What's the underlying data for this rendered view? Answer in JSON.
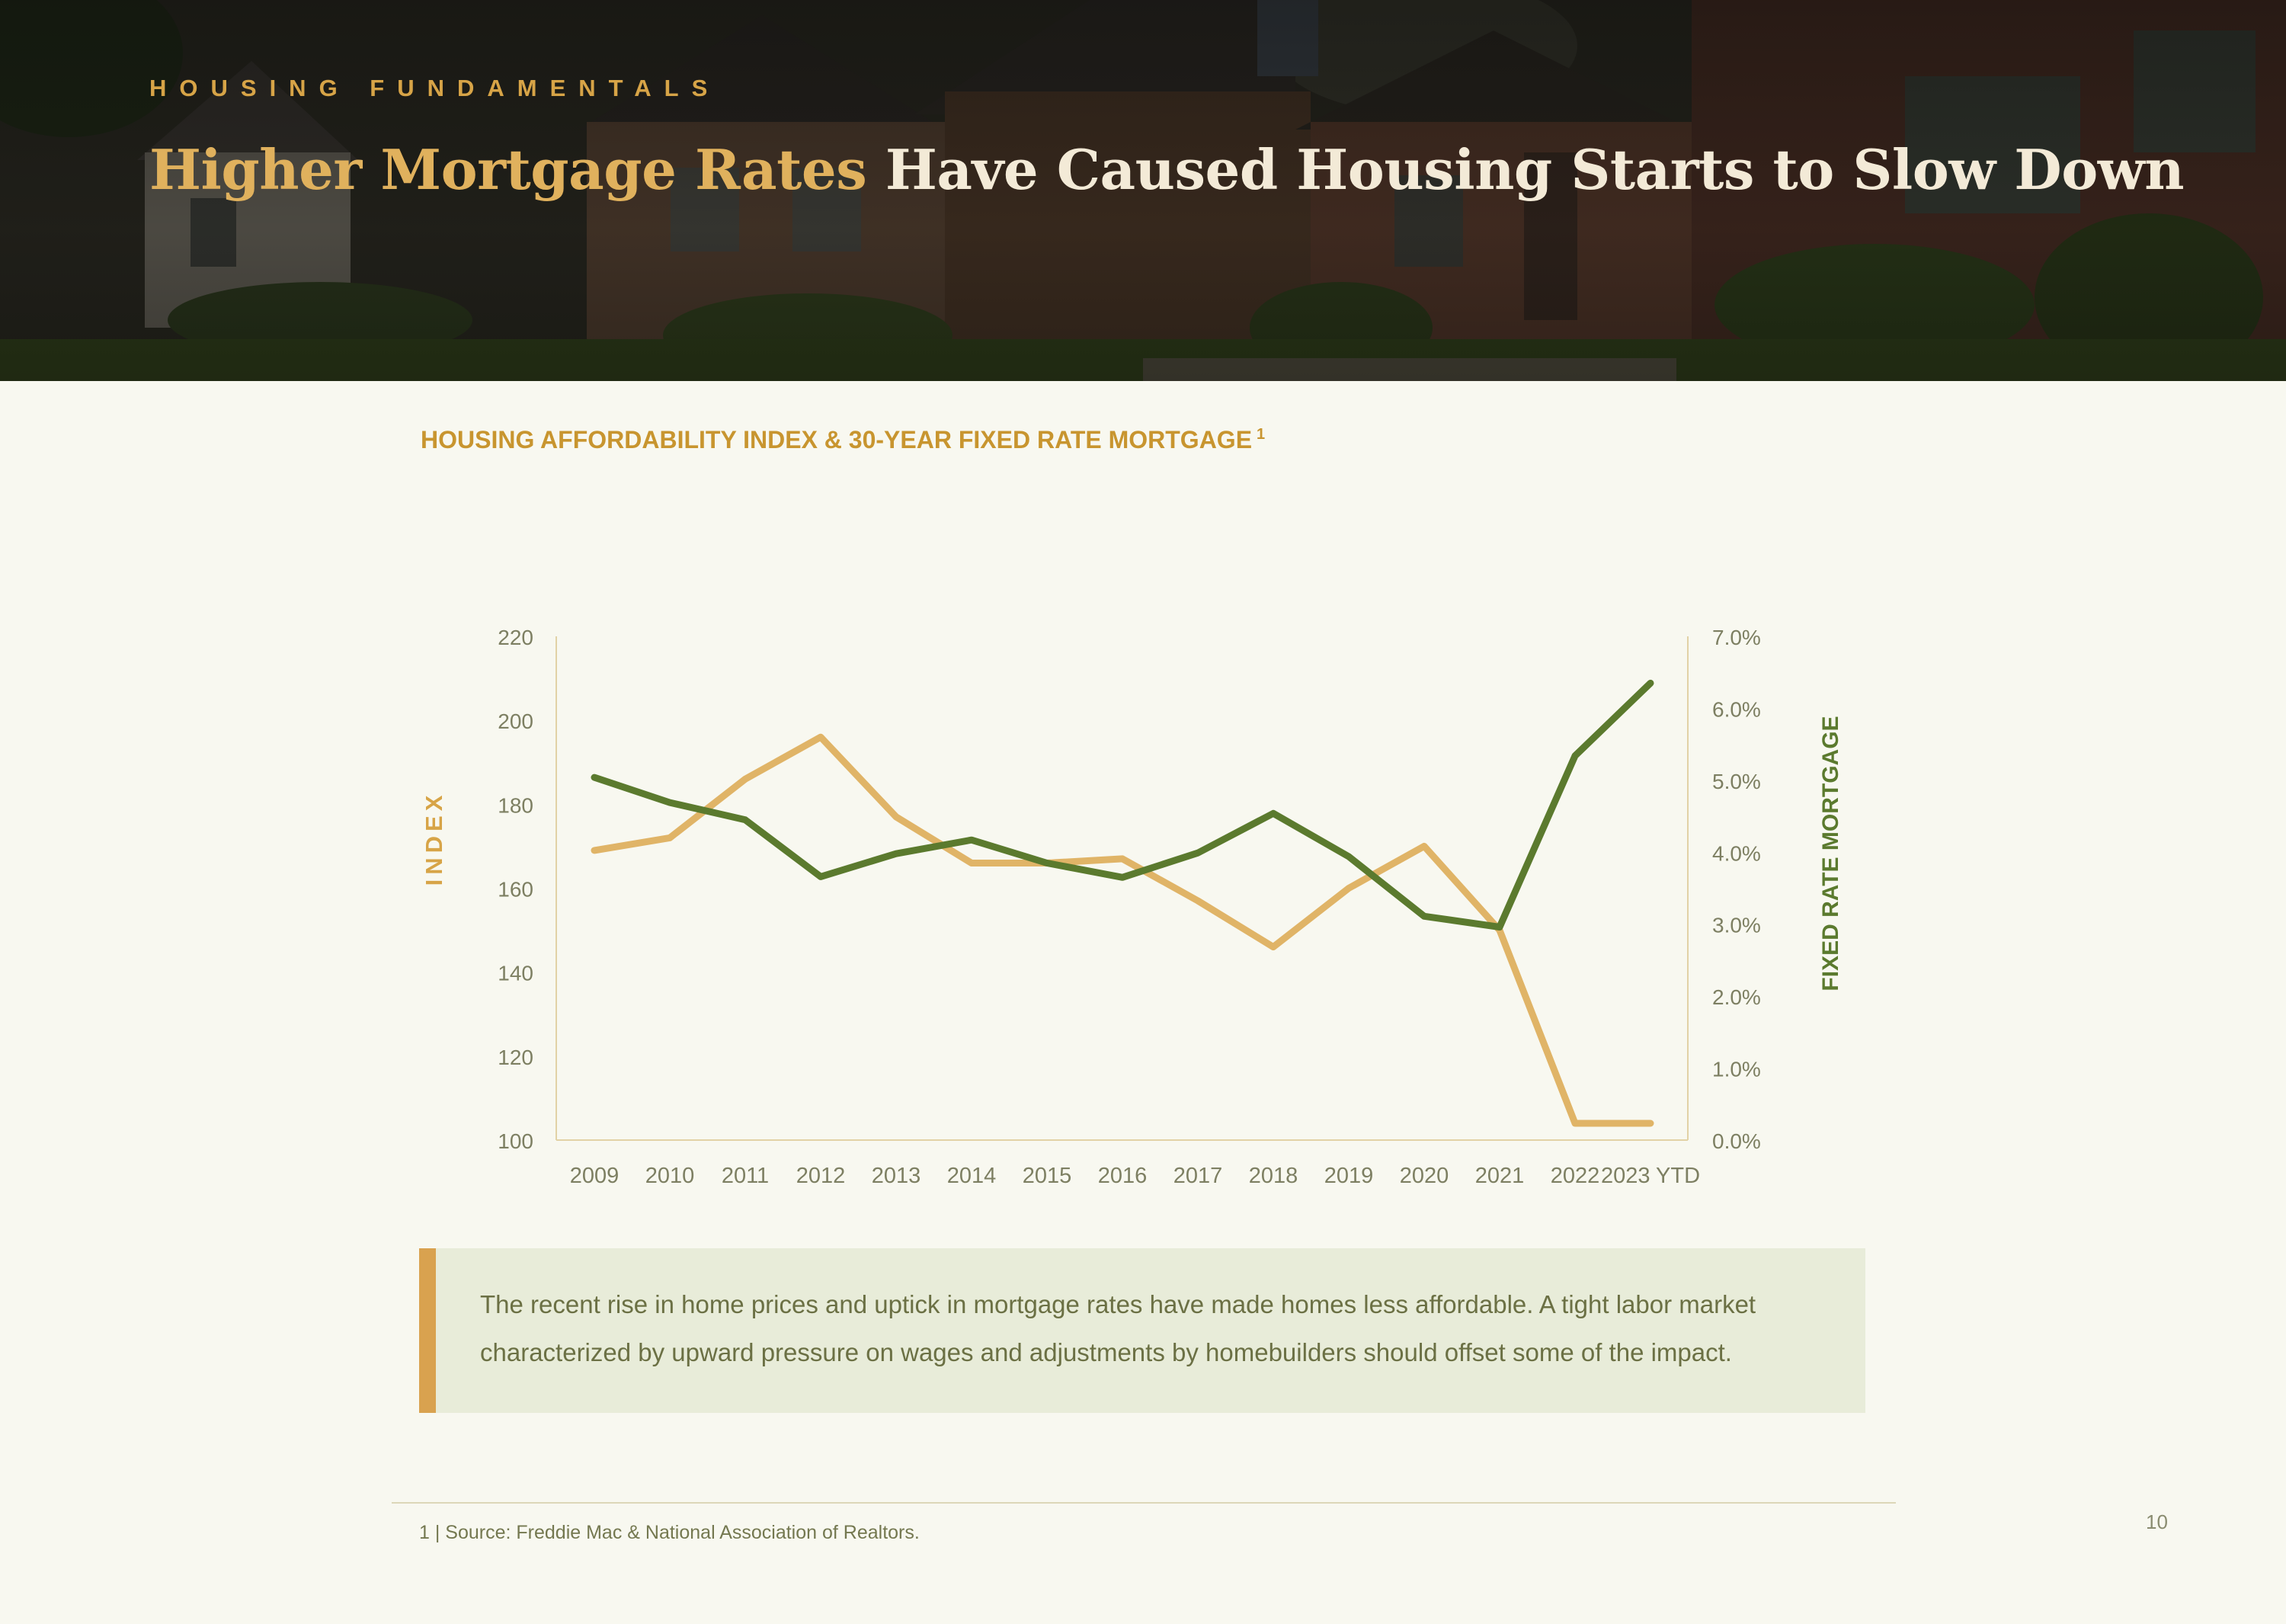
{
  "header": {
    "eyebrow": "HOUSING FUNDAMENTALS",
    "title_accent": "Higher Mortgage Rates",
    "title_rest": "Have Caused Housing Starts to Slow Down"
  },
  "colors": {
    "accent_gold": "#d7a447",
    "index_line": "#e0b467",
    "mortgage_line": "#5b7a2e",
    "callout_bg": "#e8ecd9",
    "callout_bar": "#d9a24f"
  },
  "chart_data": {
    "type": "line",
    "title": "HOUSING AFFORDABILITY INDEX & 30-YEAR FIXED RATE MORTGAGE",
    "title_footnote_marker": "1",
    "categories": [
      "2009",
      "2010",
      "2011",
      "2012",
      "2013",
      "2014",
      "2015",
      "2016",
      "2017",
      "2018",
      "2019",
      "2020",
      "2021",
      "2022",
      "2023 YTD"
    ],
    "series": [
      {
        "axis": "left",
        "values": [
          169,
          172,
          186,
          196,
          177,
          166,
          166,
          167,
          157,
          146,
          160,
          170,
          150,
          104,
          104
        ]
      },
      {
        "axis": "right",
        "values": [
          5.04,
          4.69,
          4.45,
          3.66,
          3.98,
          4.17,
          3.85,
          3.65,
          3.99,
          4.54,
          3.94,
          3.11,
          2.96,
          5.34,
          6.35
        ]
      }
    ],
    "y_left": {
      "label": "INDEX",
      "min": 100,
      "max": 220,
      "ticks": [
        "220",
        "200",
        "180",
        "160",
        "140",
        "120",
        "100"
      ]
    },
    "y_right": {
      "label": "FIXED RATE MORTGAGE",
      "min": 0,
      "max": 7,
      "ticks": [
        "7.0%",
        "6.0%",
        "5.0%",
        "4.0%",
        "3.0%",
        "2.0%",
        "1.0%",
        "0.0%"
      ]
    },
    "grid": false,
    "legend": "none"
  },
  "callout": {
    "text": "The recent rise in home prices and uptick in mortgage rates have made homes less affordable. A tight labor market characterized by upward pressure on wages and adjustments by homebuilders should offset some of the impact."
  },
  "footer": {
    "footnote": "1 | Source: Freddie Mac & National Association of Realtors.",
    "page_number": "10"
  }
}
